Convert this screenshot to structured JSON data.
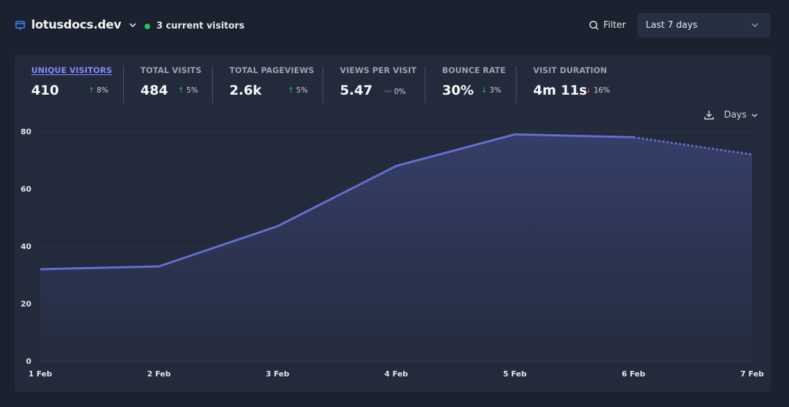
{
  "header": {
    "site_name": "lotusdocs.dev",
    "current_visitors": "3 current visitors",
    "filter_label": "Filter",
    "range_label": "Last 7 days"
  },
  "stats": [
    {
      "label": "UNIQUE VISITORS",
      "value": "410",
      "arrow": "↑",
      "change": "8%",
      "trend": "up"
    },
    {
      "label": "TOTAL VISITS",
      "value": "484",
      "arrow": "↑",
      "change": "5%",
      "trend": "up"
    },
    {
      "label": "TOTAL PAGEVIEWS",
      "value": "2.6k",
      "arrow": "↑",
      "change": "5%",
      "trend": "up"
    },
    {
      "label": "VIEWS PER VISIT",
      "value": "5.47",
      "arrow": "〰",
      "change": "0%",
      "trend": "flat"
    },
    {
      "label": "BOUNCE RATE",
      "value": "30%",
      "arrow": "↓",
      "change": "3%",
      "trend": "down-good"
    },
    {
      "label": "VISIT DURATION",
      "value": "4m 11s",
      "arrow": "↓",
      "change": "16%",
      "trend": "down-bad"
    }
  ],
  "toolbar": {
    "interval_label": "Days"
  },
  "colors": {
    "accent": "#6366f1",
    "line": "#6470d0",
    "positive": "#22c55e",
    "negative": "#ef4444"
  },
  "chart_data": {
    "type": "line",
    "title": "",
    "series_name": "Unique visitors",
    "categories": [
      "1 Feb",
      "2 Feb",
      "3 Feb",
      "4 Feb",
      "5 Feb",
      "6 Feb",
      "7 Feb"
    ],
    "values": [
      32,
      33,
      47,
      68,
      79,
      78,
      72
    ],
    "partial_last_point": true,
    "y_ticks": [
      0,
      20,
      40,
      60,
      80
    ],
    "ylim": [
      0,
      80
    ],
    "xlabel": "",
    "ylabel": "",
    "grid": true
  }
}
